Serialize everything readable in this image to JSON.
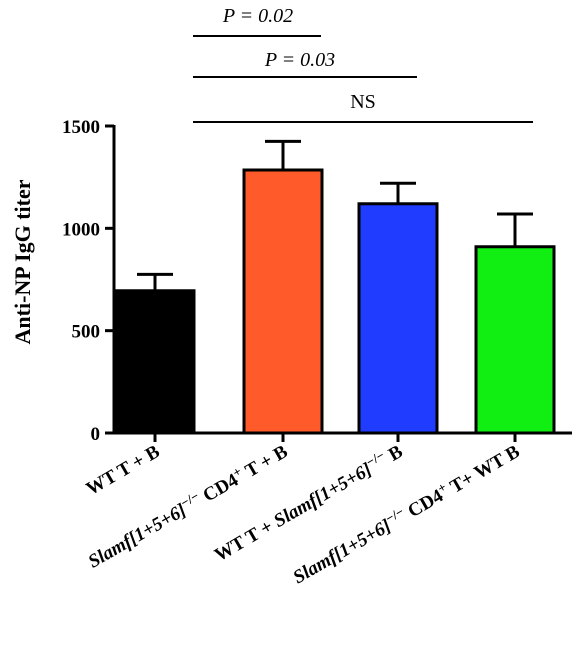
{
  "chart_data": {
    "type": "bar",
    "title": "",
    "xlabel": "",
    "ylabel": "Anti-NP IgG titer",
    "ylim": [
      0,
      1500
    ],
    "yticks": [
      0,
      500,
      1000,
      1500
    ],
    "grid": false,
    "categories": [
      {
        "parts": [
          {
            "text": "WT  T + B"
          }
        ]
      },
      {
        "parts": [
          {
            "text": "Slamf[1+5+6]",
            "italic": true
          },
          {
            "text": "−/−",
            "sup": true
          },
          {
            "text": "  CD4"
          },
          {
            "text": "+",
            "sup": true
          },
          {
            "text": "  T + B"
          }
        ]
      },
      {
        "parts": [
          {
            "text": "WT T + "
          },
          {
            "text": "Slamf[1+5+6]",
            "italic": true
          },
          {
            "text": "−/−",
            "sup": true
          },
          {
            "text": "  B"
          }
        ]
      },
      {
        "parts": [
          {
            "text": "Slamf[1+5+6]",
            "italic": true
          },
          {
            "text": "−/−",
            "sup": true
          },
          {
            "text": "  CD4"
          },
          {
            "text": "+",
            "sup": true
          },
          {
            "text": "  T+ WT B"
          }
        ]
      }
    ],
    "values": [
      695,
      1285,
      1120,
      910
    ],
    "errors": [
      80,
      140,
      100,
      160
    ],
    "colors": [
      "#000000",
      "#ff5a2a",
      "#1f3cff",
      "#10ee12"
    ],
    "comparisons": [
      {
        "label": "P = 0.02",
        "italic": true,
        "from": 1,
        "to": 2
      },
      {
        "label": "P = 0.03",
        "italic": true,
        "from": 1,
        "to": 3
      },
      {
        "label": "NS",
        "italic": false,
        "from": 1,
        "to": 4
      }
    ]
  }
}
